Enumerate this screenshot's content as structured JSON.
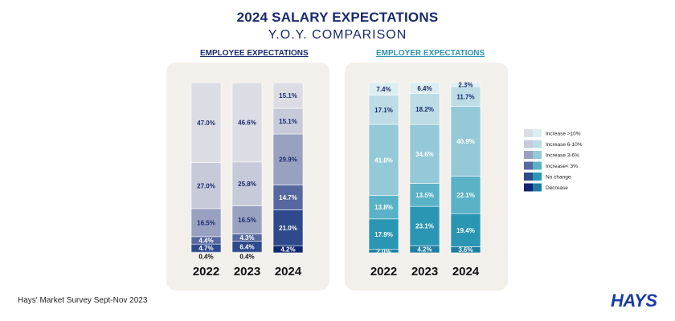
{
  "title": "2024 SALARY EXPECTATIONS",
  "subtitle": "Y.O.Y. COMPARISON",
  "footer": "Hays' Market Survey Sept-Nov 2023",
  "logo": "HAYS",
  "legend": [
    {
      "label": "Increase >10%",
      "colors": [
        "#dcdde4",
        "#dbeef2"
      ]
    },
    {
      "label": "Increase 6-10%",
      "colors": [
        "#c6cad9",
        "#bcdde6"
      ]
    },
    {
      "label": "Increase 3-6%",
      "colors": [
        "#98a1c0",
        "#94c9d7"
      ]
    },
    {
      "label": "Increase< 3%",
      "colors": [
        "#56689f",
        "#5ab2c6"
      ]
    },
    {
      "label": "No change",
      "colors": [
        "#2e4a8c",
        "#2b96b3"
      ]
    },
    {
      "label": "Decrease",
      "colors": [
        "#0f2670",
        "#1d7da3"
      ]
    }
  ],
  "chart_data": [
    {
      "type": "bar",
      "title": "EMPLOYEE EXPECTATIONS",
      "stacked": true,
      "categories": [
        "2022",
        "2023",
        "2024"
      ],
      "colors": [
        "#0f2670",
        "#2e4a8c",
        "#56689f",
        "#98a1c0",
        "#c6cad9",
        "#dcdde4"
      ],
      "series": [
        {
          "name": "Decrease",
          "values": [
            0.4,
            0.4,
            4.2
          ]
        },
        {
          "name": "No change",
          "values": [
            4.7,
            6.4,
            21.0
          ]
        },
        {
          "name": "Increase< 3%",
          "values": [
            4.4,
            4.3,
            14.7
          ]
        },
        {
          "name": "Increase 3-6%",
          "values": [
            16.5,
            16.5,
            29.9
          ]
        },
        {
          "name": "Increase 6-10%",
          "values": [
            27.0,
            25.8,
            15.1
          ]
        },
        {
          "name": "Increase >10%",
          "values": [
            47.0,
            46.6,
            15.1
          ]
        }
      ]
    },
    {
      "type": "bar",
      "title": "EMPLOYER EXPECTATIONS",
      "stacked": true,
      "categories": [
        "2022",
        "2023",
        "2024"
      ],
      "colors": [
        "#1d7da3",
        "#2b96b3",
        "#5ab2c6",
        "#94c9d7",
        "#bcdde6",
        "#dbeef2"
      ],
      "series": [
        {
          "name": "Decrease",
          "values": [
            2.0,
            4.2,
            3.6
          ]
        },
        {
          "name": "No change",
          "values": [
            17.9,
            23.1,
            19.4
          ]
        },
        {
          "name": "Increase< 3%",
          "values": [
            13.8,
            13.5,
            22.1
          ]
        },
        {
          "name": "Increase 3-6%",
          "values": [
            41.8,
            34.6,
            40.9
          ]
        },
        {
          "name": "Increase 6-10%",
          "values": [
            17.1,
            18.2,
            11.7
          ]
        },
        {
          "name": "Increase >10%",
          "values": [
            7.4,
            6.4,
            2.3
          ]
        }
      ]
    }
  ]
}
